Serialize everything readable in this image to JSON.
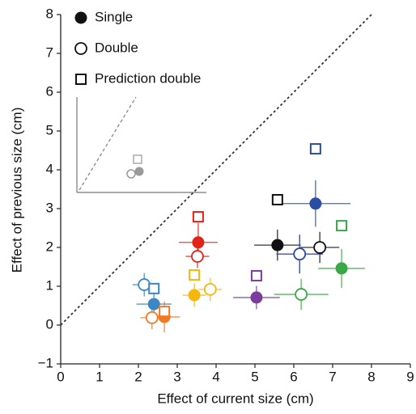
{
  "chart_data": {
    "type": "scatter",
    "x_label": "Effect of current size (cm)",
    "y_label": "Effect of previous size (cm)",
    "xlim": [
      0,
      9
    ],
    "ylim": [
      -1,
      8
    ],
    "xticks": [
      0,
      1,
      2,
      3,
      4,
      5,
      6,
      7,
      8,
      9
    ],
    "yticks": [
      {
        "value": -1,
        "label": "−1"
      },
      0,
      1,
      2,
      3,
      4,
      5,
      6,
      7,
      8
    ],
    "identity_line": true,
    "legend": "upper left",
    "point_colors": [
      "#3a86c6",
      "#f07a22",
      "#f6b60e",
      "#e2231a",
      "#7a3d9c",
      "#111111",
      "#2b4da6",
      "#39a845"
    ],
    "series": [
      {
        "name": "Single",
        "marker": "filled-circle",
        "x": [
          2.4,
          2.67,
          3.44,
          3.54,
          5.04,
          5.58,
          6.56,
          7.23
        ],
        "y": [
          0.54,
          0.21,
          0.77,
          2.13,
          0.71,
          2.06,
          3.13,
          1.46
        ],
        "xerr": [
          0.45,
          0.4,
          0.3,
          0.5,
          0.6,
          0.6,
          0.9,
          0.6
        ],
        "yerr": [
          0.5,
          0.4,
          0.3,
          0.5,
          0.3,
          0.4,
          0.6,
          0.5
        ]
      },
      {
        "name": "Double",
        "marker": "open-circle",
        "x": [
          2.15,
          2.35,
          3.85,
          3.52,
          6.15,
          6.67,
          6.15,
          6.19
        ],
        "y": [
          1.04,
          0.19,
          0.92,
          1.77,
          1.83,
          2.0,
          1.83,
          0.79
        ],
        "xerr": [
          0.3,
          0.3,
          0.3,
          0.3,
          0.6,
          0.5,
          0.6,
          0.7
        ],
        "yerr": [
          0.3,
          0.3,
          0.3,
          0.3,
          0.5,
          0.4,
          0.5,
          0.4
        ]
      },
      {
        "name": "Prediction double",
        "marker": "square",
        "x": [
          2.4,
          2.67,
          3.44,
          3.54,
          5.04,
          5.58,
          6.56,
          7.23
        ],
        "y": [
          0.94,
          0.35,
          1.29,
          2.79,
          1.27,
          3.23,
          4.54,
          2.56
        ]
      }
    ]
  }
}
